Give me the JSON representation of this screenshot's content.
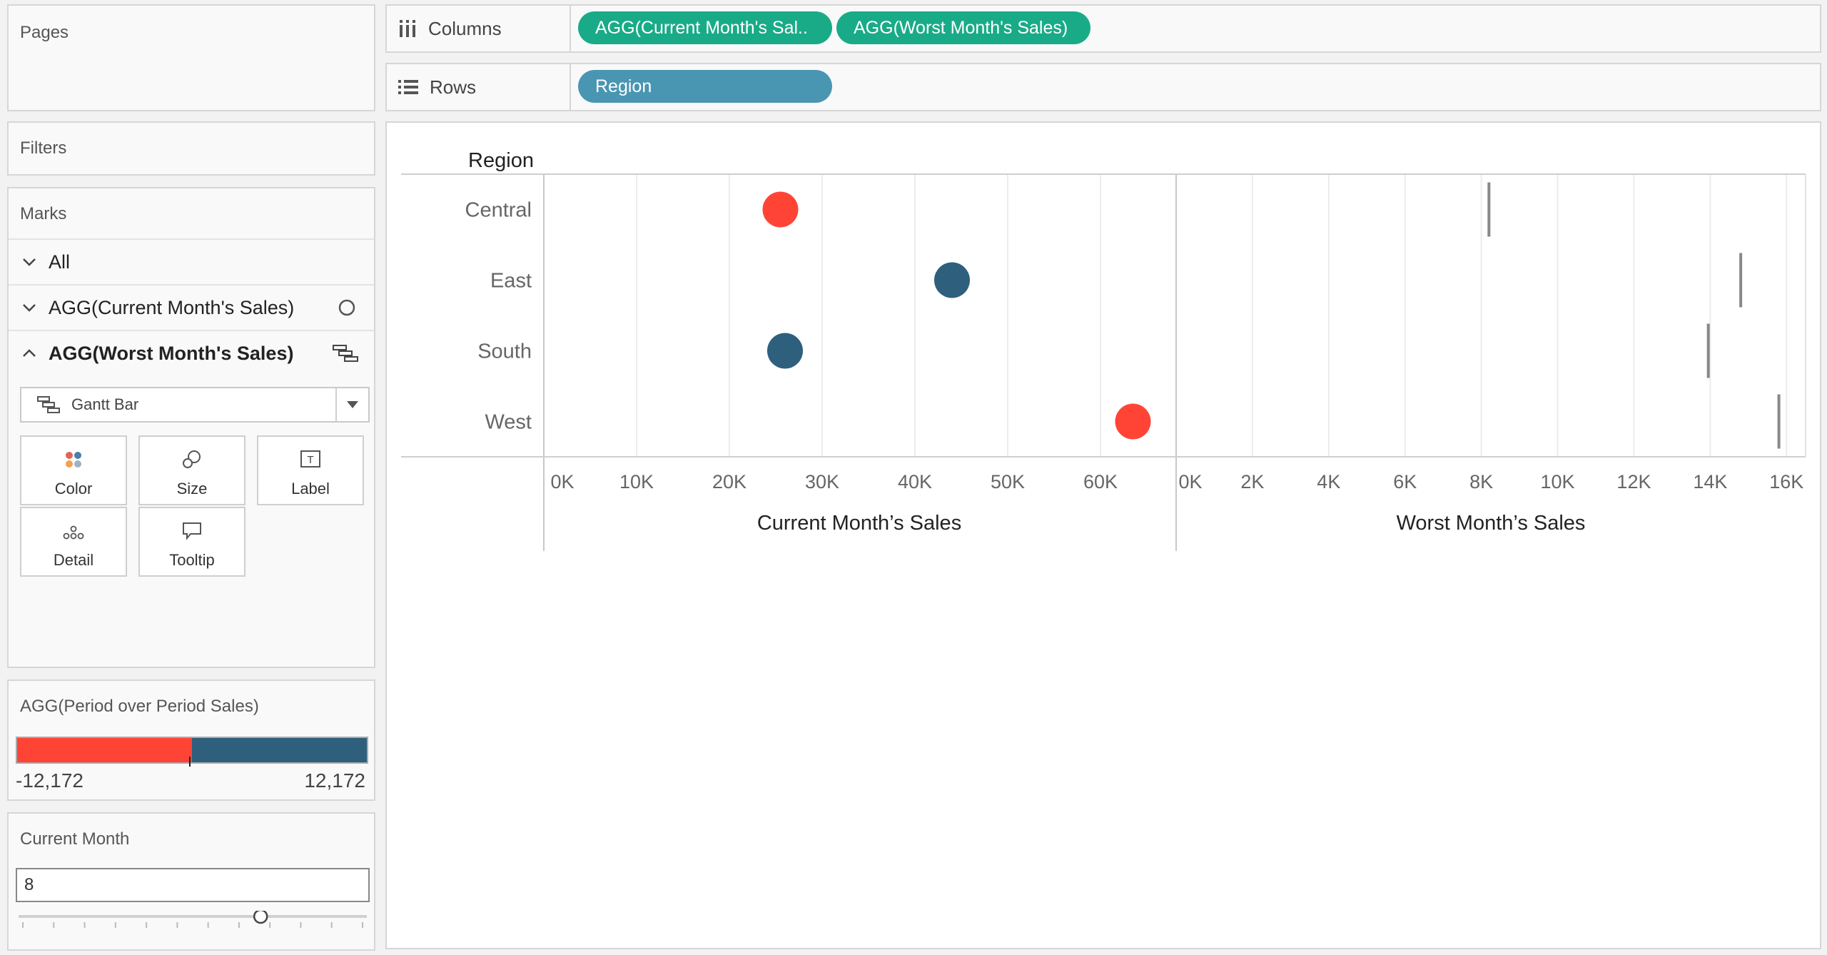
{
  "panels": {
    "pages_title": "Pages",
    "filters_title": "Filters",
    "marks_title": "Marks"
  },
  "marks": {
    "rows": [
      {
        "label": "All",
        "state": "collapsed"
      },
      {
        "label": "AGG(Current Month's Sales)",
        "state": "collapsed",
        "mark_icon": "circle-icon"
      },
      {
        "label": "AGG(Worst Month's Sales)",
        "state": "expanded",
        "mark_icon": "gantt-icon"
      }
    ],
    "mark_type": "Gantt Bar",
    "buttons": [
      "Color",
      "Size",
      "Label",
      "Detail",
      "Tooltip"
    ]
  },
  "legend": {
    "title": "AGG(Period over Period Sales)",
    "min_label": "-12,172",
    "max_label": "12,172",
    "neg_color": "#ff4436",
    "pos_color": "#2e5f7d"
  },
  "parameter": {
    "title": "Current Month",
    "value": "8",
    "slider_fraction": 0.7
  },
  "shelves": {
    "columns_label": "Columns",
    "rows_label": "Rows",
    "column_pills": [
      "AGG(Current Month's Sal..",
      "AGG(Worst Month's Sales)"
    ],
    "row_pills": [
      "Region"
    ],
    "measure_color": "#19ab87",
    "dimension_color": "#4996b2"
  },
  "chart_data": {
    "type": "scatter",
    "row_header": "Region",
    "categories": [
      "Central",
      "East",
      "South",
      "West"
    ],
    "panes": [
      {
        "xlabel": "Current Month’s Sales",
        "xlim": [
          0,
          68000
        ],
        "ticks": [
          "0K",
          "10K",
          "20K",
          "30K",
          "40K",
          "50K",
          "60K"
        ],
        "tick_values": [
          0,
          10000,
          20000,
          30000,
          40000,
          50000,
          60000
        ],
        "mark": "circle",
        "values": [
          25500,
          44000,
          26000,
          63500
        ],
        "colors": [
          "#ff4436",
          "#2e5f7d",
          "#2e5f7d",
          "#ff4436"
        ]
      },
      {
        "xlabel": "Worst Month’s Sales",
        "xlim": [
          0,
          16500
        ],
        "ticks": [
          "0K",
          "2K",
          "4K",
          "6K",
          "8K",
          "10K",
          "12K",
          "14K",
          "16K"
        ],
        "tick_values": [
          0,
          2000,
          4000,
          6000,
          8000,
          10000,
          12000,
          14000,
          16000
        ],
        "mark": "gantt",
        "values": [
          8200,
          14800,
          13950,
          15800
        ],
        "colors": [
          "#888888",
          "#888888",
          "#888888",
          "#888888"
        ]
      }
    ],
    "grid": true
  }
}
